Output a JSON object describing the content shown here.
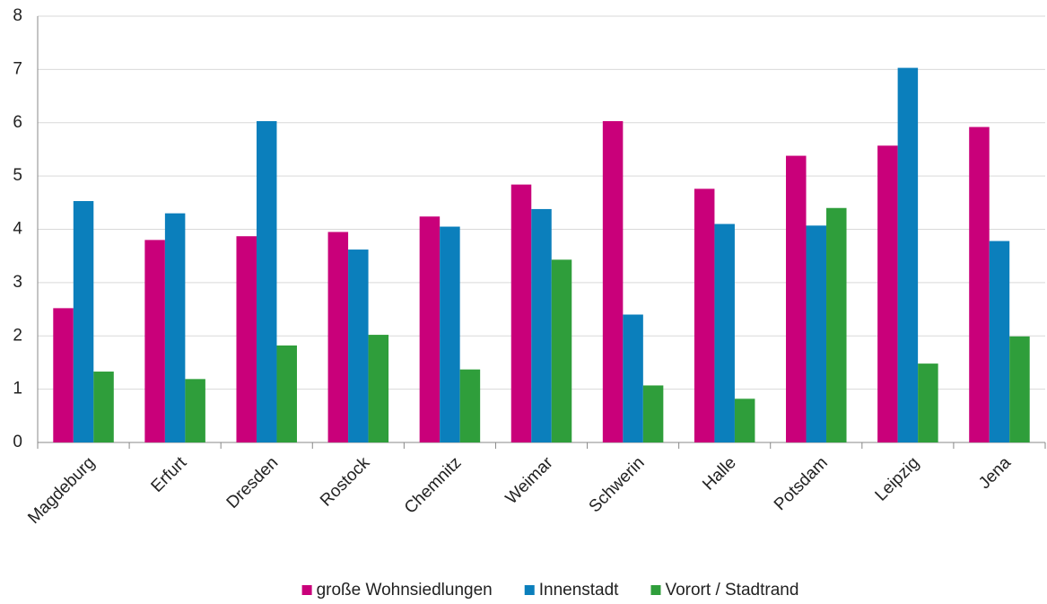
{
  "chart_data": {
    "type": "bar",
    "categories": [
      "Magdeburg",
      "Erfurt",
      "Dresden",
      "Rostock",
      "Chemnitz",
      "Weimar",
      "Schwerin",
      "Halle",
      "Potsdam",
      "Leipzig",
      "Jena"
    ],
    "series": [
      {
        "name": "große Wohnsiedlungen",
        "color": "#c9007a",
        "values": [
          2.52,
          3.8,
          3.87,
          3.95,
          4.24,
          4.84,
          6.03,
          4.76,
          5.38,
          5.57,
          5.92
        ]
      },
      {
        "name": "Innenstadt",
        "color": "#0b7fbc",
        "values": [
          4.53,
          4.3,
          6.03,
          3.62,
          4.05,
          4.38,
          2.4,
          4.1,
          4.07,
          7.03,
          3.78
        ]
      },
      {
        "name": "Vorort / Stadtrand",
        "color": "#2f9e3b",
        "values": [
          1.33,
          1.19,
          1.82,
          2.02,
          1.37,
          3.43,
          1.07,
          0.82,
          4.4,
          1.48,
          1.99
        ]
      }
    ],
    "ylim": [
      0,
      8
    ],
    "yticks": [
      0,
      1,
      2,
      3,
      4,
      5,
      6,
      7,
      8
    ],
    "grid": true,
    "legend": "bottom"
  }
}
